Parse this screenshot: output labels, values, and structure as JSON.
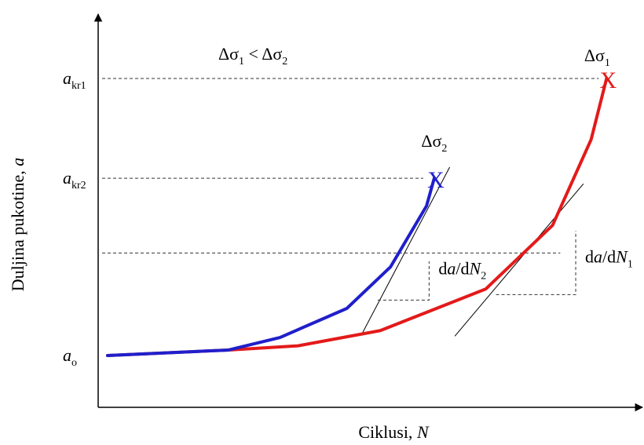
{
  "chart_data": {
    "type": "line",
    "title": "",
    "xlabel_text": "Ciklusi, ",
    "xlabel_var": "N",
    "ylabel_text": "Duljina pukotine, ",
    "ylabel_var": "a",
    "relation": {
      "left": "Δσ",
      "left_sub": "1",
      "op": " < ",
      "right": "Δσ",
      "right_sub": "2"
    },
    "yticks": [
      {
        "base": "a",
        "sub": "kr1",
        "y": 100
      },
      {
        "base": "a",
        "sub": "kr2",
        "y": 64
      },
      {
        "base": "a",
        "sub": "o",
        "y": 0
      }
    ],
    "reference_level_y": 37,
    "x_range": [
      0,
      100
    ],
    "y_range": [
      -20,
      113
    ],
    "grid": false,
    "legend": "none",
    "series": [
      {
        "name": "Δσ",
        "name_sub": "2",
        "color": "#1f1fcc",
        "points": [
          [
            0,
            0
          ],
          [
            23.5,
            2
          ],
          [
            33.5,
            6.5
          ],
          [
            46.5,
            17
          ],
          [
            55,
            32
          ],
          [
            62,
            54
          ],
          [
            63.5,
            64
          ]
        ],
        "end_marker": "X",
        "tangent": {
          "from": [
            49.5,
            8
          ],
          "to": [
            66.5,
            68
          ]
        },
        "slope_label": {
          "d1": "d",
          "var1": "a",
          "slash": "/d",
          "var2": "N",
          "sub": "2"
        },
        "triangle": {
          "p1": [
            52.5,
            20
          ],
          "corner": [
            62.5,
            20
          ],
          "p2": [
            62.5,
            34
          ]
        }
      },
      {
        "name": "Δσ",
        "name_sub": "1",
        "color": "#e31a1a",
        "points": [
          [
            0,
            0
          ],
          [
            23.5,
            2
          ],
          [
            37,
            3.5
          ],
          [
            53,
            9
          ],
          [
            73.5,
            24
          ],
          [
            86.5,
            47
          ],
          [
            94,
            78
          ],
          [
            97,
            100
          ]
        ],
        "end_marker": "X",
        "tangent": {
          "from": [
            67.5,
            7
          ],
          "to": [
            92.5,
            62
          ]
        },
        "slope_label": {
          "d1": "d",
          "var1": "a",
          "slash": "/d",
          "var2": "N",
          "sub": "1"
        },
        "triangle": {
          "p1": [
            75.5,
            22
          ],
          "corner": [
            91,
            22
          ],
          "p2": [
            91,
            45
          ]
        }
      }
    ]
  }
}
